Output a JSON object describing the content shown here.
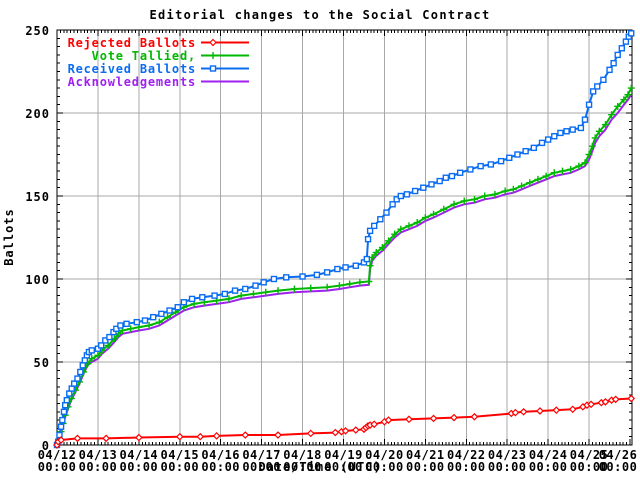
{
  "chart_data": {
    "type": "line",
    "title": "Editorial changes to the Social Contract",
    "xlabel": "Date/Time (UTC)",
    "ylabel": "Ballots",
    "ylim": [
      0,
      250
    ],
    "y_ticks": [
      0,
      50,
      100,
      150,
      200,
      250
    ],
    "y_minor_step": 5,
    "x_minor_per_day": 12,
    "grid": true,
    "grid_color": "#a8a8a8",
    "legend_position": "top-left",
    "x_ticks": [
      [
        "04/12",
        "00:00"
      ],
      [
        "04/13",
        "00:00"
      ],
      [
        "04/14",
        "00:00"
      ],
      [
        "04/15",
        "00:00"
      ],
      [
        "04/16",
        "00:00"
      ],
      [
        "04/17",
        "00:00"
      ],
      [
        "04/18",
        "00:00"
      ],
      [
        "04/19",
        "00:00"
      ],
      [
        "04/20",
        "00:00"
      ],
      [
        "04/21",
        "00:00"
      ],
      [
        "04/22",
        "00:00"
      ],
      [
        "04/23",
        "00:00"
      ],
      [
        "04/24",
        "00:00"
      ],
      [
        "04/25",
        "00:00"
      ],
      [
        "04/26",
        "00:00"
      ]
    ],
    "x_unit": "days since 04/12 00:00 UTC",
    "series": [
      {
        "name": "Rejected Ballots",
        "color": "#ff0000",
        "marker": "diamond",
        "points": [
          [
            0,
            0
          ],
          [
            0.03,
            2
          ],
          [
            0.1,
            3
          ],
          [
            0.5,
            4
          ],
          [
            1.2,
            4
          ],
          [
            2.0,
            4.5
          ],
          [
            3.0,
            5
          ],
          [
            3.5,
            5
          ],
          [
            3.9,
            5.5
          ],
          [
            4.6,
            6
          ],
          [
            5.4,
            6
          ],
          [
            6.2,
            7
          ],
          [
            6.8,
            7.5
          ],
          [
            6.95,
            8
          ],
          [
            7.05,
            8.5
          ],
          [
            7.3,
            9
          ],
          [
            7.5,
            9.5
          ],
          [
            7.55,
            10.5
          ],
          [
            7.6,
            11.5
          ],
          [
            7.65,
            12
          ],
          [
            7.75,
            12.5
          ],
          [
            8.0,
            14
          ],
          [
            8.1,
            15
          ],
          [
            8.6,
            15.5
          ],
          [
            9.2,
            16
          ],
          [
            9.7,
            16.5
          ],
          [
            10.2,
            17
          ],
          [
            11.1,
            19
          ],
          [
            11.2,
            19.5
          ],
          [
            11.4,
            20
          ],
          [
            11.8,
            20.5
          ],
          [
            12.2,
            21
          ],
          [
            12.6,
            21.5
          ],
          [
            12.85,
            23
          ],
          [
            12.95,
            24
          ],
          [
            13.05,
            24.5
          ],
          [
            13.3,
            25.5
          ],
          [
            13.4,
            26
          ],
          [
            13.55,
            27
          ],
          [
            13.65,
            27.5
          ],
          [
            14.03,
            28
          ]
        ]
      },
      {
        "name": "Vote Tallied,",
        "color": "#00b800",
        "marker": "plus",
        "points": [
          [
            0,
            0
          ],
          [
            0.05,
            3
          ],
          [
            0.1,
            8
          ],
          [
            0.15,
            13
          ],
          [
            0.2,
            18
          ],
          [
            0.27,
            23
          ],
          [
            0.35,
            28
          ],
          [
            0.45,
            33
          ],
          [
            0.55,
            38
          ],
          [
            0.65,
            44
          ],
          [
            0.75,
            49
          ],
          [
            0.85,
            52
          ],
          [
            1.0,
            54
          ],
          [
            1.1,
            57
          ],
          [
            1.25,
            60
          ],
          [
            1.4,
            64
          ],
          [
            1.5,
            67
          ],
          [
            1.6,
            69
          ],
          [
            1.8,
            70
          ],
          [
            2.0,
            71
          ],
          [
            2.25,
            72
          ],
          [
            2.5,
            74
          ],
          [
            2.7,
            77
          ],
          [
            2.9,
            80
          ],
          [
            3.1,
            83
          ],
          [
            3.35,
            85
          ],
          [
            3.6,
            86
          ],
          [
            3.9,
            87
          ],
          [
            4.2,
            88
          ],
          [
            4.5,
            90
          ],
          [
            4.8,
            91
          ],
          [
            5.1,
            92
          ],
          [
            5.4,
            93
          ],
          [
            5.8,
            94
          ],
          [
            6.2,
            94.5
          ],
          [
            6.6,
            95
          ],
          [
            6.9,
            96
          ],
          [
            7.15,
            97
          ],
          [
            7.4,
            98
          ],
          [
            7.62,
            98.5
          ],
          [
            7.65,
            108
          ],
          [
            7.7,
            113
          ],
          [
            7.8,
            116
          ],
          [
            7.95,
            119
          ],
          [
            8.1,
            123
          ],
          [
            8.25,
            127
          ],
          [
            8.4,
            130
          ],
          [
            8.6,
            132
          ],
          [
            8.8,
            134
          ],
          [
            9.0,
            137
          ],
          [
            9.2,
            139
          ],
          [
            9.45,
            142
          ],
          [
            9.7,
            145
          ],
          [
            9.95,
            147
          ],
          [
            10.2,
            148
          ],
          [
            10.45,
            150
          ],
          [
            10.7,
            151
          ],
          [
            10.95,
            153
          ],
          [
            11.15,
            154
          ],
          [
            11.35,
            156
          ],
          [
            11.55,
            158
          ],
          [
            11.75,
            160
          ],
          [
            11.95,
            162
          ],
          [
            12.15,
            164
          ],
          [
            12.35,
            165
          ],
          [
            12.55,
            166
          ],
          [
            12.75,
            168
          ],
          [
            12.9,
            170
          ],
          [
            13.0,
            175
          ],
          [
            13.08,
            180
          ],
          [
            13.15,
            185
          ],
          [
            13.25,
            189
          ],
          [
            13.4,
            193
          ],
          [
            13.55,
            199
          ],
          [
            13.7,
            204
          ],
          [
            13.85,
            208
          ],
          [
            13.95,
            211
          ],
          [
            14.03,
            215
          ]
        ]
      },
      {
        "name": "Received Ballots",
        "color": "#0a6cf0",
        "marker": "square",
        "points": [
          [
            0,
            0
          ],
          [
            0.03,
            2
          ],
          [
            0.06,
            6
          ],
          [
            0.1,
            11
          ],
          [
            0.13,
            15
          ],
          [
            0.17,
            20
          ],
          [
            0.2,
            24
          ],
          [
            0.24,
            27
          ],
          [
            0.3,
            31
          ],
          [
            0.36,
            34
          ],
          [
            0.42,
            37
          ],
          [
            0.5,
            40
          ],
          [
            0.57,
            44
          ],
          [
            0.63,
            48
          ],
          [
            0.68,
            51
          ],
          [
            0.73,
            54
          ],
          [
            0.78,
            56
          ],
          [
            0.85,
            57
          ],
          [
            1.0,
            58
          ],
          [
            1.08,
            60
          ],
          [
            1.18,
            63
          ],
          [
            1.28,
            65
          ],
          [
            1.38,
            68
          ],
          [
            1.45,
            70
          ],
          [
            1.55,
            72
          ],
          [
            1.7,
            73
          ],
          [
            1.95,
            74
          ],
          [
            2.15,
            75
          ],
          [
            2.35,
            77
          ],
          [
            2.55,
            79
          ],
          [
            2.75,
            81
          ],
          [
            2.95,
            83
          ],
          [
            3.1,
            86
          ],
          [
            3.3,
            88
          ],
          [
            3.55,
            89
          ],
          [
            3.85,
            90
          ],
          [
            4.1,
            91
          ],
          [
            4.35,
            93
          ],
          [
            4.6,
            94
          ],
          [
            4.85,
            96
          ],
          [
            5.05,
            98
          ],
          [
            5.3,
            100
          ],
          [
            5.6,
            101
          ],
          [
            6.0,
            101.5
          ],
          [
            6.35,
            102.5
          ],
          [
            6.6,
            104
          ],
          [
            6.85,
            106
          ],
          [
            7.05,
            107
          ],
          [
            7.3,
            108
          ],
          [
            7.5,
            110
          ],
          [
            7.57,
            112
          ],
          [
            7.6,
            124
          ],
          [
            7.65,
            129
          ],
          [
            7.75,
            132
          ],
          [
            7.9,
            136
          ],
          [
            8.05,
            140
          ],
          [
            8.2,
            145
          ],
          [
            8.3,
            148
          ],
          [
            8.4,
            150
          ],
          [
            8.55,
            151
          ],
          [
            8.75,
            153
          ],
          [
            8.95,
            155
          ],
          [
            9.15,
            157
          ],
          [
            9.35,
            159
          ],
          [
            9.5,
            161
          ],
          [
            9.65,
            162
          ],
          [
            9.85,
            164
          ],
          [
            10.1,
            166
          ],
          [
            10.35,
            168
          ],
          [
            10.6,
            169
          ],
          [
            10.85,
            171
          ],
          [
            11.05,
            173
          ],
          [
            11.25,
            175
          ],
          [
            11.45,
            177
          ],
          [
            11.65,
            179
          ],
          [
            11.85,
            182
          ],
          [
            12.0,
            184
          ],
          [
            12.15,
            186
          ],
          [
            12.3,
            188
          ],
          [
            12.45,
            189
          ],
          [
            12.6,
            190
          ],
          [
            12.8,
            191
          ],
          [
            12.9,
            196
          ],
          [
            13.0,
            205
          ],
          [
            13.1,
            213
          ],
          [
            13.2,
            216
          ],
          [
            13.35,
            220
          ],
          [
            13.5,
            226
          ],
          [
            13.6,
            230
          ],
          [
            13.7,
            235
          ],
          [
            13.8,
            239
          ],
          [
            13.9,
            243
          ],
          [
            13.97,
            246
          ],
          [
            14.03,
            248
          ]
        ]
      },
      {
        "name": "Acknowledgements",
        "color": "#a020f0",
        "marker": "none",
        "points": [
          [
            0,
            0
          ],
          [
            0.05,
            2
          ],
          [
            0.1,
            7
          ],
          [
            0.15,
            12
          ],
          [
            0.2,
            17
          ],
          [
            0.27,
            22
          ],
          [
            0.35,
            27
          ],
          [
            0.45,
            32
          ],
          [
            0.55,
            37
          ],
          [
            0.65,
            43
          ],
          [
            0.75,
            48
          ],
          [
            0.85,
            50
          ],
          [
            1.0,
            52
          ],
          [
            1.1,
            55
          ],
          [
            1.25,
            58
          ],
          [
            1.4,
            62
          ],
          [
            1.5,
            65
          ],
          [
            1.6,
            67
          ],
          [
            1.8,
            68
          ],
          [
            2.0,
            69
          ],
          [
            2.25,
            70
          ],
          [
            2.5,
            72
          ],
          [
            2.7,
            75
          ],
          [
            2.9,
            78
          ],
          [
            3.1,
            81
          ],
          [
            3.35,
            83
          ],
          [
            3.6,
            84
          ],
          [
            3.9,
            85
          ],
          [
            4.2,
            86
          ],
          [
            4.5,
            88
          ],
          [
            4.8,
            89
          ],
          [
            5.1,
            90
          ],
          [
            5.4,
            91
          ],
          [
            5.8,
            92
          ],
          [
            6.2,
            92.5
          ],
          [
            6.6,
            93
          ],
          [
            6.9,
            94
          ],
          [
            7.15,
            95
          ],
          [
            7.4,
            96
          ],
          [
            7.62,
            96.5
          ],
          [
            7.65,
            106
          ],
          [
            7.7,
            111
          ],
          [
            7.8,
            114
          ],
          [
            7.95,
            117
          ],
          [
            8.1,
            121
          ],
          [
            8.25,
            125
          ],
          [
            8.4,
            128
          ],
          [
            8.6,
            130
          ],
          [
            8.8,
            132
          ],
          [
            9.0,
            135
          ],
          [
            9.2,
            137
          ],
          [
            9.45,
            140
          ],
          [
            9.7,
            143
          ],
          [
            9.95,
            145
          ],
          [
            10.2,
            146
          ],
          [
            10.45,
            148
          ],
          [
            10.7,
            149
          ],
          [
            10.95,
            151
          ],
          [
            11.15,
            152
          ],
          [
            11.35,
            154
          ],
          [
            11.55,
            156
          ],
          [
            11.75,
            158
          ],
          [
            11.95,
            160
          ],
          [
            12.15,
            162
          ],
          [
            12.35,
            163
          ],
          [
            12.55,
            164
          ],
          [
            12.75,
            166
          ],
          [
            12.9,
            168
          ],
          [
            13.0,
            172
          ],
          [
            13.08,
            177
          ],
          [
            13.15,
            182
          ],
          [
            13.25,
            186
          ],
          [
            13.4,
            190
          ],
          [
            13.55,
            196
          ],
          [
            13.7,
            200
          ],
          [
            13.85,
            205
          ],
          [
            13.95,
            208
          ],
          [
            14.03,
            211
          ]
        ]
      }
    ]
  }
}
